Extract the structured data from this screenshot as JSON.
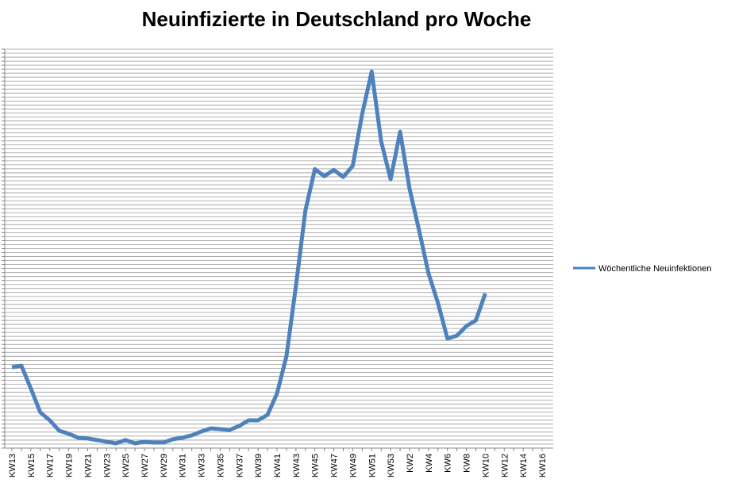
{
  "chart_data": {
    "type": "line",
    "title": "Neuinfizierte in Deutschland pro Woche",
    "categories": [
      "KW13",
      null,
      "KW15",
      null,
      "KW17",
      null,
      "KW19",
      null,
      "KW21",
      null,
      "KW23",
      null,
      "KW25",
      null,
      "KW27",
      null,
      "KW29",
      null,
      "KW31",
      null,
      "KW33",
      null,
      "KW35",
      null,
      "KW37",
      null,
      "KW39",
      null,
      "KW41",
      null,
      "KW43",
      null,
      "KW45",
      null,
      "KW47",
      null,
      "KW49",
      null,
      "KW51",
      null,
      "KW53",
      null,
      "KW2",
      null,
      "KW4",
      null,
      "KW6",
      null,
      "KW8",
      null,
      "KW10",
      null,
      "KW12",
      null,
      "KW14",
      null,
      "KW16"
    ],
    "series": [
      {
        "name": "Wöchentliche Neuinfektionen",
        "color": "#4f81bd",
        "values": [
          40500,
          41300,
          29800,
          17900,
          13900,
          8700,
          7200,
          5200,
          4800,
          4000,
          3200,
          2400,
          4000,
          2400,
          3200,
          2800,
          2800,
          4400,
          5200,
          6400,
          8300,
          9900,
          9500,
          9100,
          11100,
          13900,
          13900,
          16700,
          27400,
          46100,
          81500,
          119200,
          139900,
          136300,
          139500,
          135900,
          141500,
          167700,
          188800,
          153800,
          134800,
          158600,
          130000,
          109300,
          87500,
          72700,
          54900,
          56400,
          61200,
          64000,
          77500,
          null,
          null,
          null,
          null,
          null,
          null
        ]
      }
    ],
    "ylim": [
      0,
      200000
    ],
    "legend": "right"
  }
}
